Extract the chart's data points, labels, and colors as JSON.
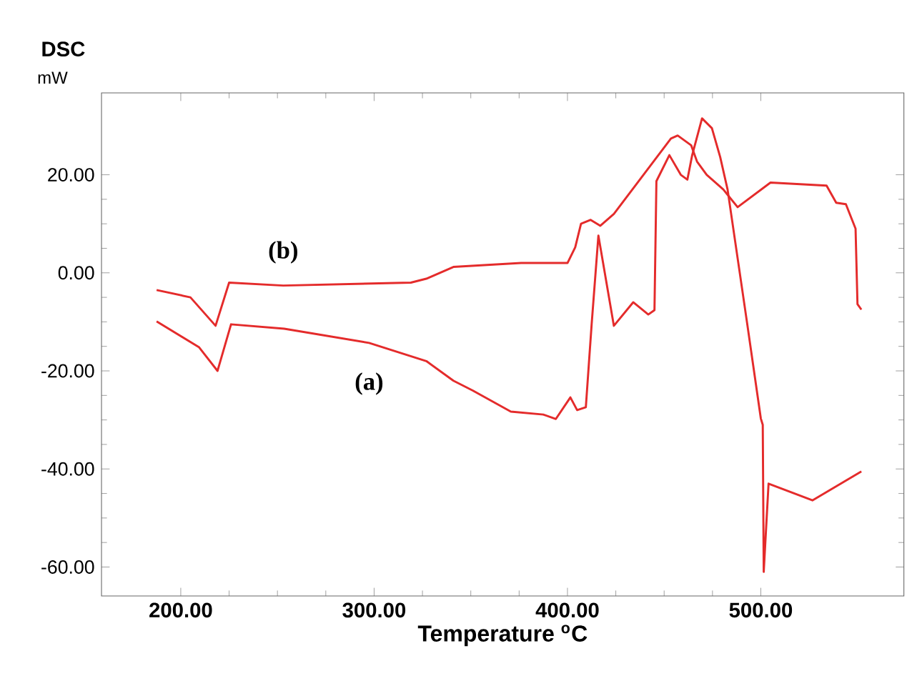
{
  "chart_data": {
    "type": "line",
    "title": "DSC",
    "ylabel": "mW",
    "xlabel": "Temperature $^{o}$C",
    "xlim": [
      159,
      574
    ],
    "ylim": [
      -65.9,
      36.7
    ],
    "xticks": [
      {
        "value": 200,
        "label": "200.00"
      },
      {
        "value": 300,
        "label": "300.00"
      },
      {
        "value": 400,
        "label": "400.00"
      },
      {
        "value": 500,
        "label": "500.00"
      }
    ],
    "yticks": [
      {
        "value": -60,
        "label": "-60.00"
      },
      {
        "value": -40,
        "label": "-40.00"
      },
      {
        "value": -20,
        "label": "-20.00"
      },
      {
        "value": 0,
        "label": "0.00"
      },
      {
        "value": 20,
        "label": "20.00"
      }
    ],
    "marker": "none",
    "line_style": "solid",
    "series": [
      {
        "name": "(a)",
        "color": "#e42b2b",
        "x": [
          187.5,
          209.5,
          219,
          226,
          253.5,
          297.4,
          327,
          341,
          351,
          370.7,
          387.5,
          394,
          401.5,
          405,
          409.5,
          412.5,
          416,
          424,
          434,
          441.8,
          445,
          446,
          452.7,
          458.6,
          462,
          464.5,
          469.6,
          474.7,
          479,
          482.8,
          493,
          500,
          501,
          501.5,
          504,
          526.7,
          552
        ],
        "values": [
          -9.9,
          -15.2,
          -20,
          -10.5,
          -11.4,
          -14.3,
          -18,
          -22,
          -24,
          -28.3,
          -28.9,
          -29.8,
          -25.4,
          -28,
          -27.4,
          -10.5,
          7.6,
          -10.8,
          -6,
          -8.5,
          -7.6,
          18.7,
          24,
          20,
          19,
          24,
          31.5,
          29.5,
          23.6,
          17,
          -10.5,
          -29.7,
          -31,
          -61,
          -43,
          -46.4,
          -40.5
        ]
      },
      {
        "name": "(b)",
        "color": "#e42b2b",
        "x": [
          187.5,
          205,
          218,
          225,
          253,
          319,
          327,
          341,
          376,
          400,
          404,
          407,
          412,
          417,
          424,
          453.5,
          457,
          464,
          467,
          472,
          480.6,
          488,
          505,
          534,
          539,
          544,
          549,
          550,
          552
        ],
        "values": [
          -3.5,
          -5,
          -10.8,
          -2,
          -2.6,
          -2,
          -1.2,
          1.2,
          2,
          2,
          5.2,
          10,
          10.8,
          9.6,
          12,
          27.4,
          28,
          26,
          22.7,
          20,
          17,
          13.4,
          18.4,
          17.8,
          14.3,
          14,
          9,
          -6.4,
          -7.5
        ]
      }
    ]
  }
}
